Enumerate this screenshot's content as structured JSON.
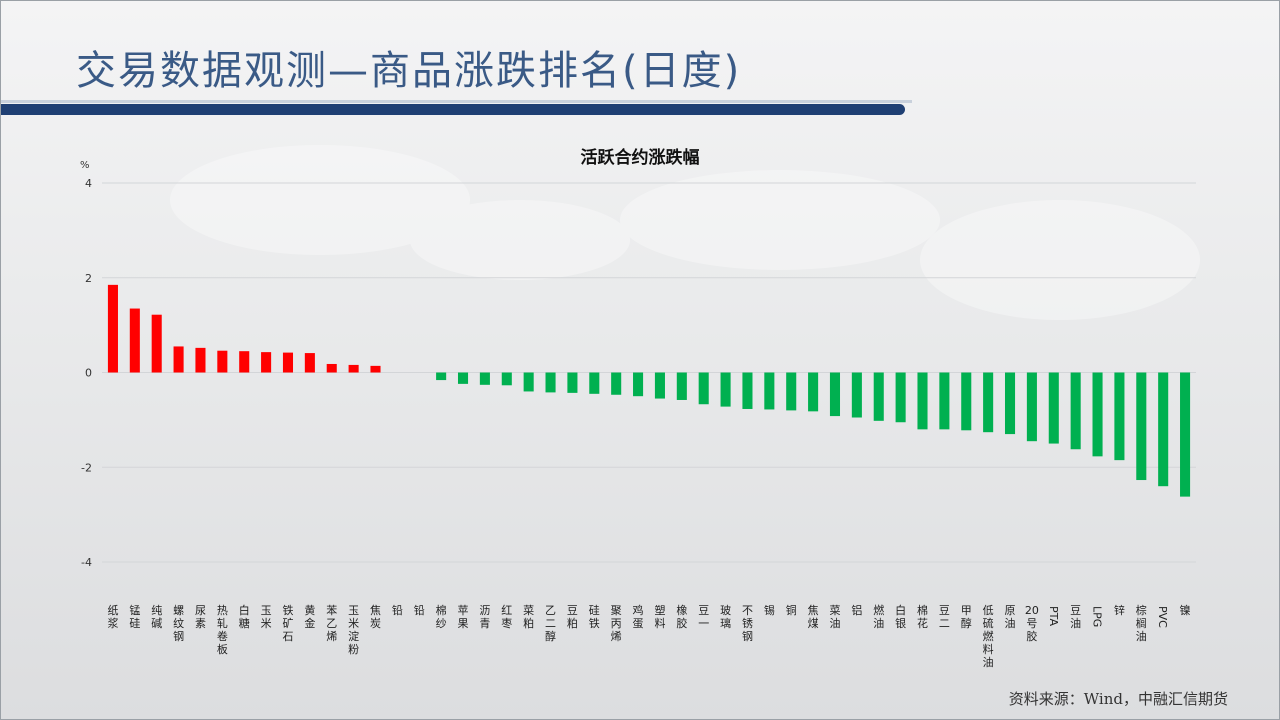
{
  "title": "交易数据观测—商品涨跌排名(日度)",
  "source": "资料来源：Wind，中融汇信期货",
  "colors": {
    "up": "#ff0000",
    "down": "#00b050",
    "title": "#3a5a86",
    "bar": "#1f3f73"
  },
  "chart_data": {
    "type": "bar",
    "title": "活跃合约涨跌幅",
    "ylabel": "%",
    "ylim": [
      -4,
      4
    ],
    "yticks": [
      4,
      2,
      0,
      -2,
      -4
    ],
    "grid": true,
    "categories": [
      "纸浆",
      "锰硅",
      "纯碱",
      "螺纹钢",
      "尿素",
      "热轧卷板",
      "白糖",
      "玉米",
      "铁矿石",
      "黄金",
      "苯乙烯",
      "玉米淀粉",
      "焦炭",
      "铅",
      "铅",
      "棉纱",
      "苹果",
      "沥青",
      "红枣",
      "菜粕",
      "乙二醇",
      "豆粕",
      "硅铁",
      "聚丙烯",
      "鸡蛋",
      "塑料",
      "橡胶",
      "豆一",
      "玻璃",
      "不锈钢",
      "锡",
      "铜",
      "焦煤",
      "菜油",
      "铝",
      "燃油",
      "白银",
      "棉花",
      "豆二",
      "甲醇",
      "低硫燃料油",
      "原油",
      "20号胶",
      "PTA",
      "豆油",
      "LPG",
      "锌",
      "棕榈油",
      "PVC",
      "镍"
    ],
    "values": [
      1.85,
      1.35,
      1.22,
      0.55,
      0.52,
      0.46,
      0.45,
      0.43,
      0.42,
      0.41,
      0.18,
      0.16,
      0.14,
      0.0,
      0.0,
      -0.16,
      -0.24,
      -0.26,
      -0.27,
      -0.4,
      -0.42,
      -0.43,
      -0.45,
      -0.47,
      -0.5,
      -0.55,
      -0.58,
      -0.67,
      -0.72,
      -0.77,
      -0.78,
      -0.8,
      -0.82,
      -0.92,
      -0.95,
      -1.02,
      -1.05,
      -1.2,
      -1.2,
      -1.22,
      -1.26,
      -1.3,
      -1.45,
      -1.5,
      -1.62,
      -1.77,
      -1.85,
      -2.27,
      -2.4,
      -2.62
    ]
  }
}
